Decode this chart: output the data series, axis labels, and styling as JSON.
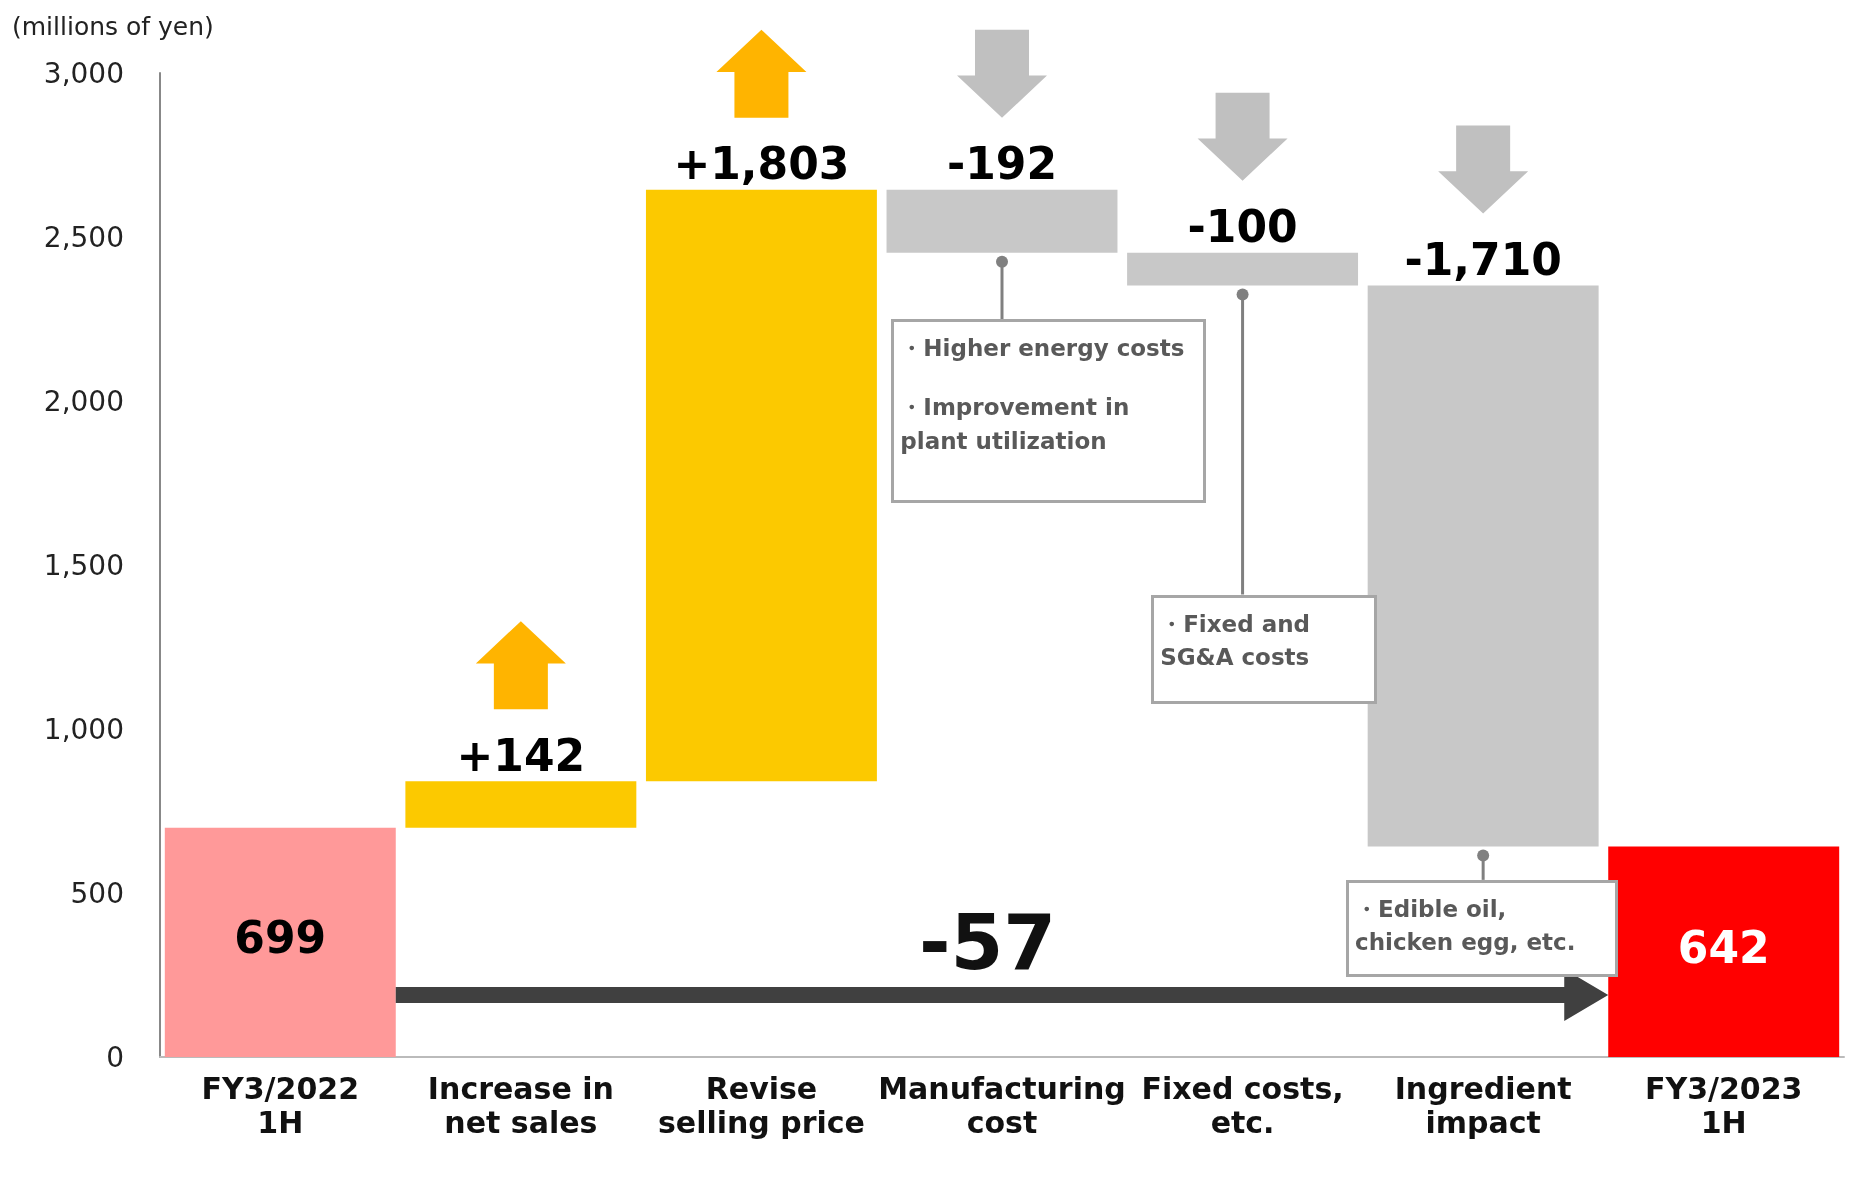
{
  "chart_data": {
    "type": "bar",
    "ylabel": "(millions of yen)",
    "categories": [
      "FY3/2022\n1H",
      "Increase in\nnet sales",
      "Revise\nselling price",
      "Manufacturing\ncost",
      "Fixed costs,\netc.",
      "Ingredient\nimpact",
      "FY3/2023\n1H"
    ],
    "base": [
      0,
      699,
      841,
      2644,
      2452,
      2352,
      0
    ],
    "values": [
      699,
      142,
      1803,
      -192,
      -100,
      -1710,
      642
    ],
    "colors": [
      "#ff9999",
      "#fcc900",
      "#fcc900",
      "#c8c8c8",
      "#c8c8c8",
      "#c8c8c8",
      "#ff0000"
    ],
    "value_labels": [
      "699",
      "+142",
      "+1,803",
      "-192",
      "-100",
      "-1,710",
      "642"
    ],
    "ylim": [
      0,
      3000
    ],
    "yticks": [
      0,
      500,
      {
        "value": 1000,
        "label": "1,000"
      },
      {
        "value": 1500,
        "label": "1,500"
      },
      {
        "value": 2000,
        "label": "2,000"
      },
      {
        "value": 2500,
        "label": "2,500"
      },
      {
        "value": 3000,
        "label": "3,000"
      }
    ],
    "annotations": [
      "-57",
      {
        "text": "・Higher energy costs",
        "x": "Manufacturing\ncost",
        "y": 2452
      },
      "・Improvement in plant utilization",
      {
        "text": "・Fixed and SG&A costs",
        "x": "Fixed costs,\netc.",
        "y": 2352
      },
      {
        "text": "・Edible oil, chicken egg, etc.",
        "x": "Ingredient\nimpact",
        "y": 642
      }
    ]
  }
}
